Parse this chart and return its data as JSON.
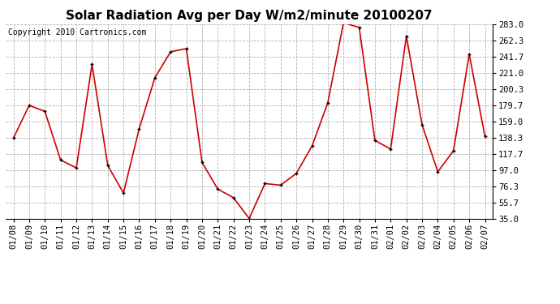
{
  "title": "Solar Radiation Avg per Day W/m2/minute 20100207",
  "copyright": "Copyright 2010 Cartronics.com",
  "x_labels": [
    "01/08",
    "01/09",
    "01/10",
    "01/11",
    "01/12",
    "01/13",
    "01/14",
    "01/15",
    "01/16",
    "01/17",
    "01/18",
    "01/19",
    "01/20",
    "01/21",
    "01/22",
    "01/23",
    "01/24",
    "01/25",
    "01/26",
    "01/27",
    "01/28",
    "01/29",
    "01/30",
    "01/31",
    "02/01",
    "02/02",
    "02/03",
    "02/04",
    "02/05",
    "02/06",
    "02/07"
  ],
  "y_values": [
    138.0,
    179.7,
    172.0,
    110.0,
    100.0,
    232.0,
    103.0,
    68.0,
    150.0,
    215.0,
    248.0,
    252.0,
    107.0,
    73.0,
    62.0,
    35.5,
    80.0,
    78.0,
    93.0,
    128.0,
    183.0,
    285.0,
    279.0,
    135.0,
    124.0,
    268.0,
    155.0,
    95.0,
    122.0,
    245.0,
    140.0
  ],
  "y_ticks": [
    35.0,
    55.7,
    76.3,
    97.0,
    117.7,
    138.3,
    159.0,
    179.7,
    200.3,
    221.0,
    241.7,
    262.3,
    283.0
  ],
  "line_color": "#cc0000",
  "marker_color": "#000000",
  "bg_color": "#ffffff",
  "grid_color": "#b0b0b0",
  "title_fontsize": 11,
  "copyright_fontsize": 7,
  "tick_fontsize": 7.5,
  "ylim": [
    35.0,
    283.0
  ]
}
